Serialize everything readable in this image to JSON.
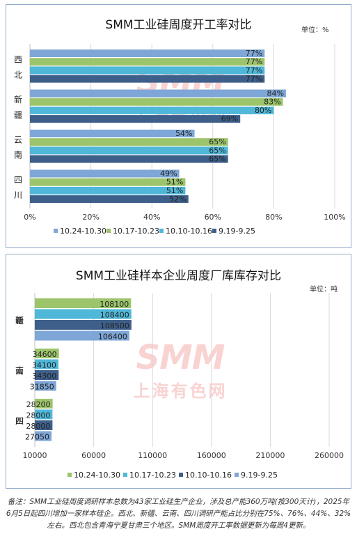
{
  "chart_data": [
    {
      "type": "bar",
      "orientation": "horizontal",
      "title": "SMM工业硅周度开工率对比",
      "unit": "单位：%",
      "categories": [
        "西北",
        "新疆",
        "云南",
        "四川"
      ],
      "series": [
        {
          "name": "10.24-10.30",
          "color": "#7ea6d6",
          "values": [
            77,
            84,
            54,
            49
          ]
        },
        {
          "name": "10.17-10.23",
          "color": "#9cc46a",
          "values": [
            77,
            83,
            65,
            51
          ]
        },
        {
          "name": "10.10-10.16",
          "color": "#4fb7d8",
          "values": [
            77,
            80,
            65,
            51
          ]
        },
        {
          "name": "9.19-9.25",
          "color": "#3e5f8a",
          "values": [
            77,
            69,
            65,
            52
          ]
        }
      ],
      "value_suffix": "%",
      "xlim": [
        0,
        100
      ],
      "xticks": [
        "0%",
        "20%",
        "40%",
        "60%",
        "80%",
        "100%"
      ],
      "grid": true,
      "legend_position": "bottom"
    },
    {
      "type": "bar",
      "orientation": "horizontal",
      "title": "SMM工业硅样本企业周度厂库库存对比",
      "unit": "单位：吨",
      "categories": [
        "新疆",
        "云南",
        "四川"
      ],
      "series": [
        {
          "name": "10.24-10.30",
          "color": "#9cc46a",
          "values": [
            108100,
            34600,
            28200
          ]
        },
        {
          "name": "10.17-10.23",
          "color": "#4fb7d8",
          "values": [
            108400,
            34100,
            28000
          ]
        },
        {
          "name": "10.10-10.16",
          "color": "#3e5f8a",
          "values": [
            108500,
            34300,
            28000
          ]
        },
        {
          "name": "9.19-9.25",
          "color": "#7ea6d6",
          "values": [
            106400,
            31850,
            27050
          ]
        }
      ],
      "value_suffix": "",
      "xlim": [
        10000,
        310000
      ],
      "xticks": [
        "10000",
        "60000",
        "110000",
        "160000",
        "210000",
        "260000"
      ],
      "grid": true,
      "legend_position": "bottom"
    }
  ],
  "watermark": {
    "logo": "SMM",
    "text": "上海有色网",
    "color": "#e53935"
  },
  "note": "备注：SMM工业硅周度调研样本总数为43家工业硅生产企业，涉及总产能360万吨(按300天计)，2025年6月5日起四川增加一家样本硅企。西北、新疆、云南、四川调研产能占比分别在75%、76%、44%、32%左右。西北包含青海宁夏甘肃三个地区。SMM周度开工率数据更新为每周4更新。"
}
